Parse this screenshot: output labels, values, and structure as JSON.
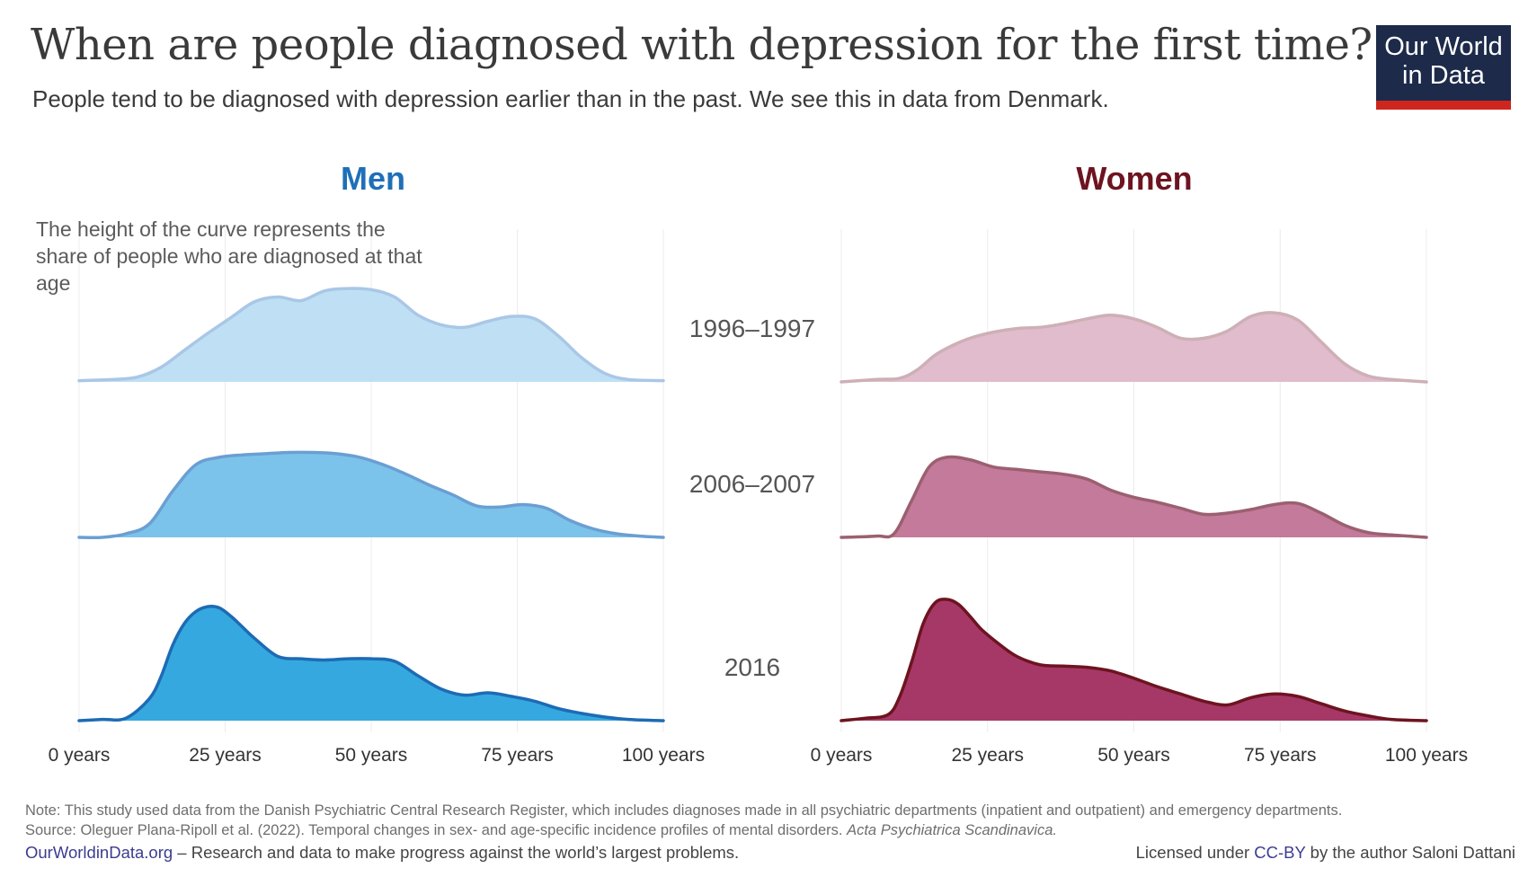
{
  "header": {
    "title": "When are people diagnosed with depression for the first time?",
    "subtitle": "People tend to be diagnosed with depression earlier than in the past. We see this in data from Denmark.",
    "logo_line1": "Our World",
    "logo_line2": "in Data"
  },
  "annotation": "The height of the curve represents the share of people who are diagnosed at that age",
  "colors": {
    "men_title": "#1f6fb8",
    "women_title": "#6d1420",
    "logo_bg": "#1d2a4a",
    "logo_bar": "#ce261e"
  },
  "chart_data": {
    "type": "area",
    "subtype": "ridgeline",
    "title": "When are people diagnosed with depression for the first time?",
    "xlabel": "Age",
    "x_ticks": [
      0,
      25,
      50,
      75,
      100
    ],
    "x_tick_labels": [
      "0 years",
      "25 years",
      "50 years",
      "75 years",
      "100 years"
    ],
    "xlim": [
      0,
      100
    ],
    "y_unit": "relative density (share diagnosed at that age, peak of tallest curve = 1.0)",
    "grid": "vertical",
    "rows": [
      "1996–1997",
      "2006–2007",
      "2016"
    ],
    "panels": [
      {
        "name": "Men",
        "series": [
          {
            "period": "1996–1997",
            "fill": "#bfe0f4",
            "stroke": "#a9c7e6",
            "x": [
              0,
              6,
              10,
              14,
              18,
              22,
              26,
              30,
              34,
              38,
              42,
              46,
              50,
              54,
              58,
              62,
              66,
              70,
              74,
              78,
              82,
              86,
              90,
              94,
              100
            ],
            "y": [
              0.01,
              0.02,
              0.04,
              0.12,
              0.26,
              0.4,
              0.53,
              0.66,
              0.7,
              0.67,
              0.75,
              0.77,
              0.76,
              0.7,
              0.55,
              0.47,
              0.45,
              0.5,
              0.54,
              0.52,
              0.38,
              0.2,
              0.07,
              0.02,
              0.01
            ]
          },
          {
            "period": "2006–2007",
            "fill": "#7cc3eb",
            "stroke": "#6a9fd2",
            "x": [
              0,
              4,
              8,
              12,
              16,
              20,
              24,
              28,
              32,
              36,
              40,
              44,
              48,
              52,
              56,
              60,
              64,
              68,
              72,
              76,
              80,
              84,
              88,
              92,
              96,
              100
            ],
            "y": [
              0.0,
              0.0,
              0.03,
              0.11,
              0.38,
              0.6,
              0.66,
              0.68,
              0.69,
              0.7,
              0.7,
              0.69,
              0.66,
              0.6,
              0.52,
              0.43,
              0.35,
              0.26,
              0.25,
              0.27,
              0.24,
              0.14,
              0.07,
              0.03,
              0.01,
              0.0
            ]
          },
          {
            "period": "2016",
            "fill": "#36a8e0",
            "stroke": "#1d6bb5",
            "x": [
              0,
              4,
              8,
              12,
              14,
              16,
              18,
              20,
              22,
              24,
              26,
              28,
              30,
              34,
              38,
              42,
              46,
              50,
              54,
              58,
              62,
              66,
              70,
              74,
              78,
              82,
              86,
              90,
              94,
              100
            ],
            "y": [
              0.0,
              0.01,
              0.02,
              0.18,
              0.36,
              0.62,
              0.8,
              0.9,
              0.94,
              0.93,
              0.86,
              0.77,
              0.68,
              0.53,
              0.51,
              0.5,
              0.51,
              0.51,
              0.49,
              0.37,
              0.26,
              0.21,
              0.23,
              0.2,
              0.16,
              0.1,
              0.06,
              0.03,
              0.01,
              0.0
            ]
          }
        ]
      },
      {
        "name": "Women",
        "series": [
          {
            "period": "1996–1997",
            "fill": "#e1bccc",
            "stroke": "#cdb0b6",
            "x": [
              0,
              6,
              10,
              13,
              16,
              19,
              22,
              26,
              30,
              34,
              38,
              42,
              46,
              50,
              54,
              58,
              62,
              66,
              70,
              74,
              78,
              82,
              86,
              90,
              94,
              100
            ],
            "y": [
              0.0,
              0.02,
              0.03,
              0.1,
              0.22,
              0.3,
              0.36,
              0.41,
              0.44,
              0.45,
              0.48,
              0.52,
              0.55,
              0.52,
              0.45,
              0.36,
              0.36,
              0.42,
              0.54,
              0.57,
              0.51,
              0.33,
              0.15,
              0.05,
              0.02,
              0.0
            ]
          },
          {
            "period": "2006–2007",
            "fill": "#c47a9a",
            "stroke": "#9b6070",
            "x": [
              0,
              6,
              9,
              12,
              15,
              18,
              22,
              26,
              30,
              34,
              38,
              42,
              46,
              50,
              54,
              58,
              62,
              66,
              70,
              74,
              78,
              82,
              86,
              90,
              94,
              100
            ],
            "y": [
              0.0,
              0.01,
              0.03,
              0.3,
              0.58,
              0.66,
              0.64,
              0.58,
              0.56,
              0.54,
              0.52,
              0.48,
              0.39,
              0.33,
              0.29,
              0.24,
              0.19,
              0.2,
              0.23,
              0.27,
              0.28,
              0.2,
              0.1,
              0.04,
              0.02,
              0.0
            ]
          },
          {
            "period": "2016",
            "fill": "#a63867",
            "stroke": "#6d1420",
            "x": [
              0,
              4,
              8,
              10,
              12,
              14,
              16,
              18,
              20,
              22,
              24,
              27,
              30,
              34,
              38,
              42,
              46,
              50,
              54,
              58,
              62,
              66,
              70,
              74,
              78,
              82,
              86,
              90,
              94,
              100
            ],
            "y": [
              0.0,
              0.02,
              0.05,
              0.2,
              0.48,
              0.8,
              0.97,
              1.0,
              0.96,
              0.86,
              0.75,
              0.63,
              0.53,
              0.46,
              0.45,
              0.44,
              0.41,
              0.35,
              0.28,
              0.22,
              0.16,
              0.13,
              0.19,
              0.22,
              0.2,
              0.14,
              0.08,
              0.04,
              0.01,
              0.0
            ]
          }
        ]
      }
    ]
  },
  "footer": {
    "note": "Note: This study used data from the Danish Psychiatric Central Research Register, which includes diagnoses made in all psychiatric departments (inpatient and outpatient) and emergency departments.",
    "source_prefix": "Source: Oleguer Plana-Ripoll et al. (2022). Temporal changes in sex- and age-specific incidence profiles of mental disorders. ",
    "source_journal": "Acta Psychiatrica Scandinavica.",
    "site_link": "OurWorldinData.org",
    "site_tagline": " – Research and data to make progress against the world’s largest problems.",
    "license_prefix": "Licensed under ",
    "license_link": "CC-BY",
    "license_suffix": " by the author Saloni Dattani"
  }
}
